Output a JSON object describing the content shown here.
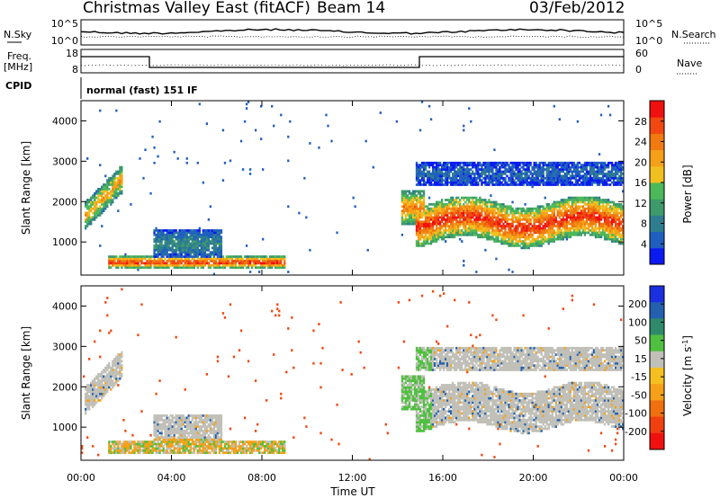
{
  "header": {
    "station": "Christmas Valley East (fitACF)",
    "beam": "Beam 14",
    "date": "03/Feb/2012"
  },
  "panels": {
    "nsky_label": "N.Sky",
    "nsearch_label": "N.Search",
    "freq_label_top": "Freq.",
    "freq_label_bottom": "[MHz]",
    "nave_label": "Nave",
    "cpid_label": "CPID",
    "cpid_text": "normal (fast) 151 IF",
    "noise_ticks_left": [
      "10^5",
      "10^0"
    ],
    "noise_ticks_right": [
      "10^5",
      "10^0"
    ],
    "freq_ticks": [
      "18",
      "8"
    ],
    "nave_ticks": [
      "60",
      "0"
    ]
  },
  "chart_data": [
    {
      "name": "Power",
      "type": "heatmap",
      "ylabel": "Slant Range [km]",
      "xlabel": "Time UT",
      "x_ticks": [
        "00:00",
        "04:00",
        "08:00",
        "12:00",
        "16:00",
        "20:00",
        "00:00"
      ],
      "y_ticks": [
        "1000",
        "2000",
        "3000",
        "4000"
      ],
      "ylim": [
        180,
        4500
      ],
      "xlim_hours": [
        0,
        24
      ],
      "colorbar": {
        "label": "Power [dB]",
        "ticks": [
          "4",
          "8",
          "12",
          "16",
          "20",
          "24",
          "28"
        ],
        "range": [
          0,
          32
        ],
        "colors": [
          "#0a1af0",
          "#1f5fbf",
          "#2e7d8f",
          "#3e9a6a",
          "#4cb85a",
          "#f0c020",
          "#f5a018",
          "#f07a10",
          "#f04810",
          "#f01010"
        ]
      },
      "regions": [
        {
          "h0": 0.2,
          "h1": 1.8,
          "r0": 1300,
          "r1": 2900,
          "peak": 22
        },
        {
          "h0": 1.2,
          "h1": 9.0,
          "r0": 350,
          "r1": 650,
          "peak": 30
        },
        {
          "h0": 3.2,
          "h1": 6.2,
          "r0": 600,
          "r1": 1300,
          "peak": 10
        },
        {
          "h0": 14.2,
          "h1": 15.2,
          "r0": 1400,
          "r1": 2300,
          "peak": 24
        },
        {
          "h0": 14.8,
          "h1": 24.0,
          "r0": 1000,
          "r1": 2000,
          "peak": 30
        },
        {
          "h0": 14.8,
          "h1": 24.0,
          "r0": 2400,
          "r1": 3000,
          "peak": 6
        }
      ]
    },
    {
      "name": "Velocity",
      "type": "heatmap",
      "ylabel": "Slant Range [km]",
      "xlabel": "Time UT",
      "x_ticks": [
        "00:00",
        "04:00",
        "08:00",
        "12:00",
        "16:00",
        "20:00",
        "00:00"
      ],
      "y_ticks": [
        "1000",
        "2000",
        "3000",
        "4000"
      ],
      "ylim": [
        180,
        4500
      ],
      "colorbar": {
        "label": "Velocity [m s^-1]",
        "ticks": [
          "200",
          "100",
          "50",
          "15",
          "-15",
          "-50",
          "-100",
          "-200"
        ],
        "colors": [
          "#1a30e0",
          "#2460b0",
          "#2e8a6a",
          "#50c040",
          "#c0c0b8",
          "#f5c020",
          "#f5a018",
          "#f07010",
          "#f04010",
          "#f01010"
        ]
      }
    }
  ]
}
